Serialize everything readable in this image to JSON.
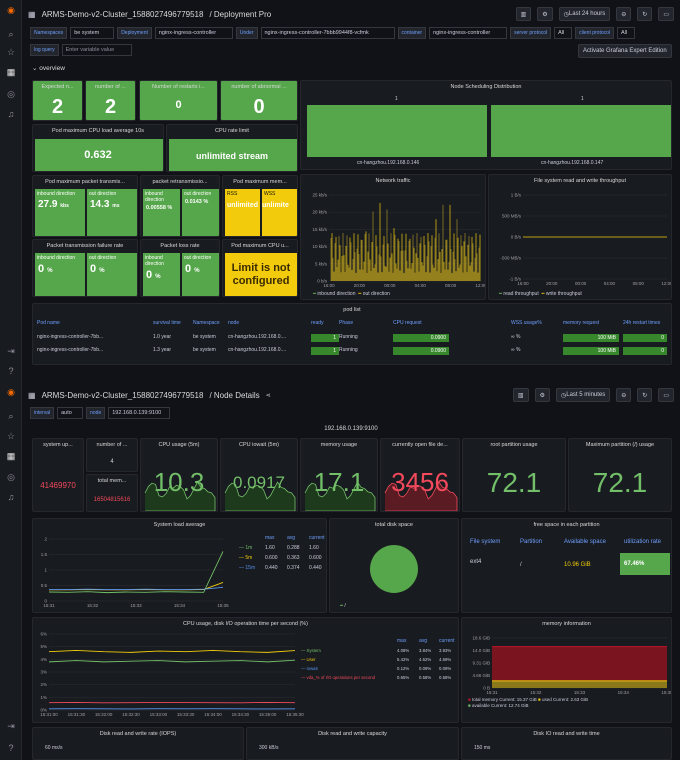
{
  "nav": {
    "icons": [
      "grafana-logo-icon",
      "search-icon",
      "star-icon",
      "dashboards-icon",
      "explore-icon",
      "alerting-icon",
      "signin-icon",
      "help-icon"
    ]
  },
  "d1": {
    "breadcrumb": "ARMS-Demo-v2-Cluster_1588027496779518",
    "title": "/ Deployment Pro",
    "time": "Last 24 hours",
    "vars": [
      {
        "l": "Namespaces",
        "v": "be system"
      },
      {
        "l": "Deployment",
        "v": "nginx-ingress-controller"
      },
      {
        "l": "Under",
        "v": "nginx-ingress-controller-7bbb9944f8-vcfmk"
      },
      {
        "l": "container",
        "v": "nginx-ingress-controller"
      },
      {
        "l": "server protocol",
        "v": "All"
      },
      {
        "l": "client protocol",
        "v": "All"
      }
    ],
    "logq": "log query",
    "logq_ph": "Enter variable value",
    "activate": "Activate Grafana Expert Edition",
    "overview": "overview",
    "p": {
      "expected": "Expected n...",
      "expected_v": "2",
      "number": "number of ...",
      "number_v": "2",
      "restarts": "Number of restarts i...",
      "restarts_v": "0",
      "abnormal": "number of abnormal ...",
      "abnormal_v": "0",
      "cpu_avg": "Pod maximum CPU load average 10s",
      "cpu_avg_v": "0.632",
      "cpu_limit": "CPU rate limit",
      "cpu_limit_v": "unlimited stream",
      "sched": "Node Scheduling Distribution",
      "sched_a": "cn-hangzhou.192.168.0.146",
      "sched_b": "cn-hangzhou.192.168.0.147",
      "sched_va": "1",
      "sched_vb": "1",
      "pkt": "Pod maximum packet transmis...",
      "pkt_in": "inbound direction",
      "pkt_in_v": "27.9",
      "pkt_in_u": "kbs",
      "pkt_out": "out direction",
      "pkt_out_v": "14.3",
      "pkt_out_u": "ms",
      "retr": "packet retransmissio...",
      "retr_in": "inbound direction",
      "retr_in_v": "0.00558 %",
      "retr_out": "out direction",
      "retr_out_v": "0.0143 %",
      "mem": "Pod maximum mem...",
      "mem_a": "RSS",
      "mem_a_v": "unlimited",
      "mem_b": "WSS",
      "mem_b_v": "unlimite",
      "net": "Network traffic",
      "net_y": [
        "25 kb/s",
        "20 kb/s",
        "15 kb/s",
        "10 kb/s",
        "5 kb/s",
        "0 b/s"
      ],
      "net_x": [
        "16:00",
        "20:00",
        "00:00",
        "04:00",
        "08:00",
        "12:00"
      ],
      "net_l1": "inbound direction",
      "net_l2": "out direction",
      "fs": "File system read and write throughput",
      "fs_y": [
        "1 B/s",
        "500 MB/s",
        "0 B/s",
        "-500 MB/s",
        "-1 B/s"
      ],
      "fs_x": [
        "16:00",
        "20:00",
        "00:00",
        "04:00",
        "08:00",
        "12:00"
      ],
      "fs_l1": "read throughput",
      "fs_l2": "write throughput",
      "fail": "Packet transmission failure rate",
      "fail_in": "inbound direction",
      "fail_in_v": "0",
      "fail_out": "out direction",
      "fail_out_v": "0",
      "loss": "Packet loss rate",
      "loss_in": "inbound direction",
      "loss_in_v": "0",
      "loss_out": "out direction",
      "loss_out_v": "0",
      "cpumax": "Pod maximum CPU u...",
      "cpumax_v": "Limit is not configured"
    },
    "pod": {
      "title": "pod list",
      "headers": [
        "Pod name",
        "survival time",
        "Namespace",
        "node",
        "ready",
        "Phase",
        "CPU request",
        "WSS usage%",
        "memory request",
        "24h restart times"
      ],
      "rows": [
        [
          "nginx-ingress-controller-7bb...",
          "1.0 year",
          "be system",
          "cn-hangzhou.192.168.0....",
          "1",
          "Running",
          "0.0900",
          "∞ %",
          "100 MiB",
          "0"
        ],
        [
          "nginx-ingress-controller-7bb...",
          "1.3 year",
          "be system",
          "cn-hangzhou.192.168.0....",
          "1",
          "Running",
          "0.0900",
          "∞ %",
          "100 MiB",
          "0"
        ]
      ]
    }
  },
  "d2": {
    "breadcrumb": "ARMS-Demo-v2-Cluster_1588027496779518",
    "title": "/ Node Details",
    "time": "Last 5 minutes",
    "vars": [
      {
        "l": "interval",
        "v": "auto"
      },
      {
        "l": "node",
        "v": "192.168.0.139:9100"
      }
    ],
    "node": "192.168.0.139:9100",
    "p": {
      "uptime": "system up...",
      "uptime_v": "41469970",
      "cpus": "number of ...",
      "cpus_v": "4",
      "totmem": "total mem...",
      "totmem_v": "16504815616",
      "cpu": "CPU usage (5m)",
      "cpu_v": "10.3",
      "iowait": "CPU iowait (5m)",
      "iowait_v": "0.0917",
      "mem": "memory usage",
      "mem_v": "17.1",
      "files": "currently open file de...",
      "files_v": "3456",
      "root": "root partition usage",
      "root_v": "72.1",
      "maxp": "Maximum partition (/) usage",
      "maxp_v": "72.1",
      "load": "System load average",
      "load_y": [
        "2",
        "1.5",
        "1",
        "0.5",
        "0"
      ],
      "load_x": [
        "15:31",
        "15:32",
        "15:33",
        "15:34",
        "15:35"
      ],
      "load_h": [
        "max",
        "avg",
        "current"
      ],
      "load_rows": [
        [
          "1m",
          "1.60",
          "0.288",
          "1.60"
        ],
        [
          "5m",
          "0.600",
          "0.363",
          "0.600"
        ],
        [
          "15m",
          "0.440",
          "0.374",
          "0.440"
        ]
      ],
      "disk": "total disk space",
      "disk_l": "/",
      "free": "free space in each partition",
      "free_h": [
        "File system",
        "Partition",
        "Available space",
        "utilization rate"
      ],
      "free_r": [
        "ext4",
        "/",
        "10.96 GiB",
        "67.46%"
      ],
      "cpuio": "CPU usage, disk I/O operation time per second (%)",
      "cpuio_y": [
        "6%",
        "5%",
        "4%",
        "3%",
        "2%",
        "1%",
        "0%"
      ],
      "cpuio_x": [
        "15:31:00",
        "15:31:30",
        "15:32:00",
        "15:32:30",
        "15:33:00",
        "15:33:30",
        "15:34:00",
        "15:34:30",
        "15:35:00",
        "15:35:30"
      ],
      "cpuio_h": [
        "max",
        "avg",
        "current"
      ],
      "cpuio_rows": [
        [
          "System",
          "4.08%",
          "3.84%",
          "3.93%"
        ],
        [
          "User",
          "5.42%",
          "4.62%",
          "4.69%"
        ],
        [
          "Iowait",
          "0.12%",
          "0.09%",
          "0.09%"
        ],
        [
          "vda_% of I/O operations per second",
          "0.65%",
          "0.58%",
          "0.58%"
        ]
      ],
      "meminfo": "memory information",
      "mem_y": [
        "18.6 GiB",
        "14.0 GiB",
        "9.31 GiB",
        "4.66 GiB",
        "0 B"
      ],
      "mem_x": [
        "15:31",
        "15:32",
        "15:33",
        "15:34",
        "15:35"
      ],
      "mem_l": [
        "total memory Current: 15.37 GiB",
        "used Current: 2.63 GiB",
        "available Current: 12.74 GiB"
      ],
      "iops": "Disk read and write rate (IOPS)",
      "iops_y": "60 ms/s",
      "cap": "Disk read and write capacity",
      "cap_y": "300 kB/s",
      "iotime": "Disk IO read and write time",
      "iotime_y": "150 ms"
    }
  }
}
